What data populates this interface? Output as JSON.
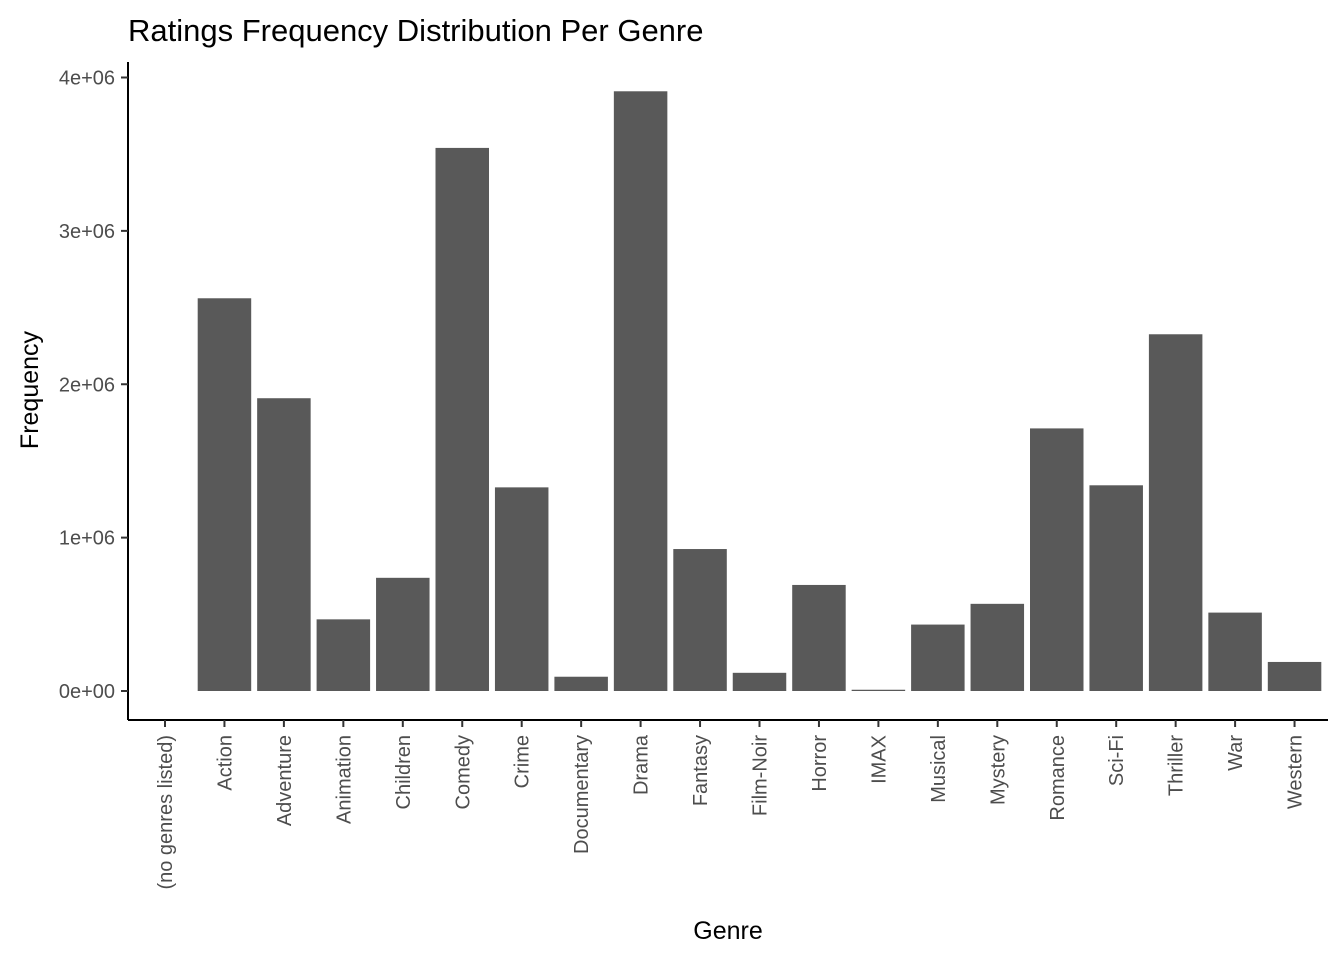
{
  "chart_data": {
    "type": "bar",
    "title": "Ratings Frequency Distribution Per Genre",
    "xlabel": "Genre",
    "ylabel": "Frequency",
    "ylim": [
      0,
      4000000
    ],
    "yticks": [
      0,
      1000000,
      2000000,
      3000000,
      4000000
    ],
    "ytick_labels": [
      "0e+00",
      "1e+06",
      "2e+06",
      "3e+06",
      "4e+06"
    ],
    "categories": [
      "(no genres listed)",
      "Action",
      "Adventure",
      "Animation",
      "Children",
      "Comedy",
      "Crime",
      "Documentary",
      "Drama",
      "Fantasy",
      "Film-Noir",
      "Horror",
      "IMAX",
      "Musical",
      "Mystery",
      "Romance",
      "Sci-Fi",
      "Thriller",
      "War",
      "Western"
    ],
    "values": [
      7,
      2560545,
      1908892,
      467168,
      737994,
      3540930,
      1327715,
      93066,
      3910127,
      925637,
      118541,
      691485,
      8181,
      433080,
      568332,
      1712100,
      1341183,
      2325899,
      511147,
      189394
    ],
    "bar_color": "#595959",
    "grid": false,
    "legend": "none"
  }
}
